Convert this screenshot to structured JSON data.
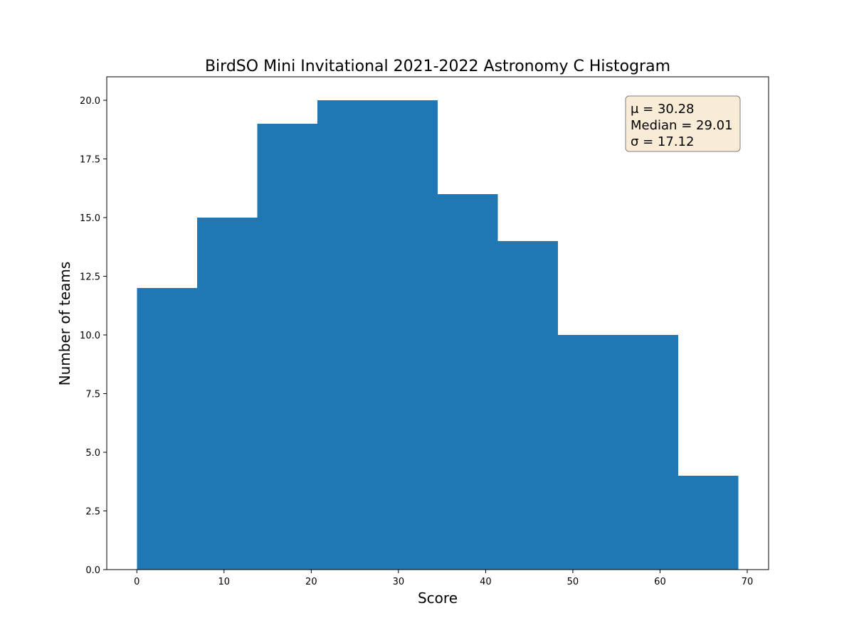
{
  "chart_data": {
    "type": "bar",
    "title": "BirdSO Mini Invitational 2021-2022 Astronomy C Histogram",
    "xlabel": "Score",
    "ylabel": "Number of teams",
    "xlim": [
      -3.45,
      72.45
    ],
    "ylim": [
      0,
      21
    ],
    "bin_edges": [
      0,
      6.9,
      13.8,
      20.7,
      27.6,
      34.5,
      41.4,
      48.3,
      55.2,
      62.1,
      69.0
    ],
    "values": [
      12,
      15,
      19,
      20,
      20,
      16,
      14,
      10,
      10,
      4
    ],
    "xticks": [
      "0",
      "10",
      "20",
      "30",
      "40",
      "50",
      "60",
      "70"
    ],
    "yticks": [
      "0.0",
      "2.5",
      "5.0",
      "7.5",
      "10.0",
      "12.5",
      "15.0",
      "17.5",
      "20.0"
    ],
    "bar_color": "#1f77b4",
    "stats_box": {
      "position": "top-right",
      "background": "#f9ecd7",
      "mu": "μ = 30.28",
      "median": "Median = 29.01",
      "sigma": "σ = 17.12"
    }
  }
}
